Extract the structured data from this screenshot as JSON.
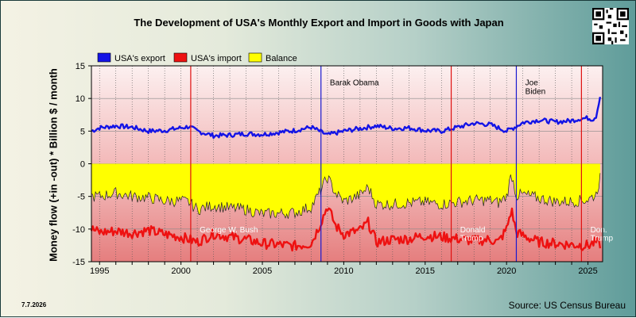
{
  "chart_data": {
    "type": "line",
    "title": "The Development of USA's Monthly Export and Import in Goods with Japan",
    "ylabel": "Money flow (+in -out) * Billion $ / month",
    "xlabel": "",
    "xlim": [
      1994.5,
      2025.9
    ],
    "ylim": [
      -15,
      15
    ],
    "yticks": [
      -15,
      -10,
      -5,
      0,
      5,
      10,
      15
    ],
    "xticks": [
      1995,
      2000,
      2005,
      2010,
      2015,
      2020,
      2025
    ],
    "legend": {
      "placement": "top-left",
      "entries": [
        "USA's export",
        "USA's import",
        "Balance"
      ]
    },
    "colors": {
      "export": "#1414e6",
      "import": "#ee1111",
      "balance": "#ffff00",
      "marker_red": "#e01010",
      "marker_blue": "#1a1ad0"
    },
    "grid": true,
    "series": [
      {
        "name": "USA's export",
        "x": [
          1994.5,
          1995.0,
          1996.0,
          1997.0,
          1998.0,
          1999.0,
          2000.0,
          2000.5,
          2001.0,
          2002.0,
          2003.0,
          2004.0,
          2005.0,
          2006.0,
          2007.0,
          2008.0,
          2008.5,
          2009.0,
          2010.0,
          2011.0,
          2012.0,
          2013.0,
          2014.0,
          2015.0,
          2016.0,
          2017.0,
          2018.0,
          2019.0,
          2020.0,
          2020.5,
          2021.0,
          2022.0,
          2023.0,
          2024.0,
          2024.5,
          2025.0,
          2025.3,
          2025.5,
          2025.6,
          2025.7,
          2025.8
        ],
        "values": [
          5.0,
          5.5,
          5.8,
          5.6,
          5.0,
          5.1,
          5.5,
          5.7,
          5.0,
          4.3,
          4.4,
          4.6,
          4.5,
          4.8,
          5.1,
          5.6,
          5.0,
          4.4,
          5.0,
          5.4,
          5.8,
          5.4,
          5.5,
          5.1,
          5.0,
          5.6,
          6.2,
          6.0,
          5.0,
          5.6,
          6.3,
          6.7,
          6.4,
          6.6,
          6.9,
          7.0,
          6.8,
          7.3,
          8.5,
          9.8,
          10.8
        ]
      },
      {
        "name": "USA's import",
        "x": [
          1994.5,
          1995.0,
          1996.0,
          1997.0,
          1998.0,
          1999.0,
          2000.0,
          2000.5,
          2001.0,
          2002.0,
          2003.0,
          2004.0,
          2005.0,
          2006.0,
          2007.0,
          2008.0,
          2008.5,
          2009.0,
          2009.5,
          2010.0,
          2011.0,
          2011.5,
          2012.0,
          2013.0,
          2014.0,
          2015.0,
          2016.0,
          2017.0,
          2018.0,
          2019.0,
          2019.5,
          2020.0,
          2020.3,
          2020.6,
          2021.0,
          2022.0,
          2023.0,
          2024.0,
          2025.0,
          2025.5,
          2025.8
        ],
        "values": [
          -10.0,
          -10.5,
          -10.3,
          -10.6,
          -10.2,
          -10.8,
          -11.2,
          -11.6,
          -12.0,
          -10.7,
          -11.2,
          -11.6,
          -12.2,
          -12.4,
          -12.6,
          -12.2,
          -9.5,
          -6.5,
          -9.5,
          -10.8,
          -10.2,
          -9.0,
          -12.0,
          -11.6,
          -11.5,
          -11.0,
          -11.2,
          -11.5,
          -11.8,
          -11.6,
          -12.0,
          -10.0,
          -7.0,
          -10.5,
          -11.0,
          -12.0,
          -12.2,
          -12.4,
          -12.5,
          -12.0,
          -12.4
        ]
      },
      {
        "name": "Balance",
        "x": [
          1994.5,
          1995.0,
          1996.0,
          1997.0,
          1998.0,
          1999.0,
          2000.0,
          2000.5,
          2001.0,
          2002.0,
          2003.0,
          2004.0,
          2005.0,
          2006.0,
          2007.0,
          2008.0,
          2008.5,
          2009.0,
          2009.5,
          2010.0,
          2011.0,
          2011.5,
          2012.0,
          2013.0,
          2014.0,
          2015.0,
          2016.0,
          2017.0,
          2018.0,
          2019.0,
          2019.5,
          2020.0,
          2020.3,
          2020.6,
          2021.0,
          2022.0,
          2023.0,
          2024.0,
          2025.0,
          2025.5,
          2025.8
        ],
        "values": [
          -5.0,
          -5.0,
          -4.5,
          -5.0,
          -5.2,
          -5.7,
          -5.7,
          -5.9,
          -7.0,
          -6.4,
          -6.8,
          -7.0,
          -7.7,
          -7.6,
          -7.5,
          -6.6,
          -4.5,
          -2.1,
          -4.5,
          -5.8,
          -4.8,
          -3.6,
          -6.2,
          -6.2,
          -6.0,
          -5.9,
          -6.2,
          -5.9,
          -5.6,
          -5.6,
          -6.0,
          -5.0,
          -1.5,
          -4.9,
          -4.7,
          -5.3,
          -5.8,
          -5.8,
          -5.5,
          -4.7,
          -1.6
        ]
      }
    ],
    "annotations": [
      {
        "text": "George W. Bush",
        "x": 2001.0,
        "y": -10,
        "color": "white",
        "marker": "red"
      },
      {
        "text": "Barak Obama",
        "x": 2009.0,
        "y": 12.5,
        "color": "black",
        "marker": "blue"
      },
      {
        "text": "Donald",
        "x": 2017.0,
        "y": -10,
        "color": "white",
        "marker": "red"
      },
      {
        "text": "Trump",
        "x": 2017.0,
        "y": -11.3,
        "color": "white",
        "marker": "none"
      },
      {
        "text": "Joe",
        "x": 2021.0,
        "y": 12.5,
        "color": "black",
        "marker": "blue"
      },
      {
        "text": "Biden",
        "x": 2021.0,
        "y": 11.2,
        "color": "black",
        "marker": "none"
      },
      {
        "text": "Don.",
        "x": 2025.0,
        "y": -10,
        "color": "white",
        "marker": "red"
      },
      {
        "text": "Trump",
        "x": 2025.0,
        "y": -11.3,
        "color": "white",
        "marker": "none"
      }
    ],
    "markers_x": [
      {
        "x": 2000.6,
        "color": "red"
      },
      {
        "x": 2008.6,
        "color": "blue"
      },
      {
        "x": 2016.6,
        "color": "red"
      },
      {
        "x": 2020.6,
        "color": "blue"
      },
      {
        "x": 2024.6,
        "color": "red"
      }
    ]
  },
  "date_stamp": "7.7.2026",
  "source": "Source: US Census Bureau"
}
